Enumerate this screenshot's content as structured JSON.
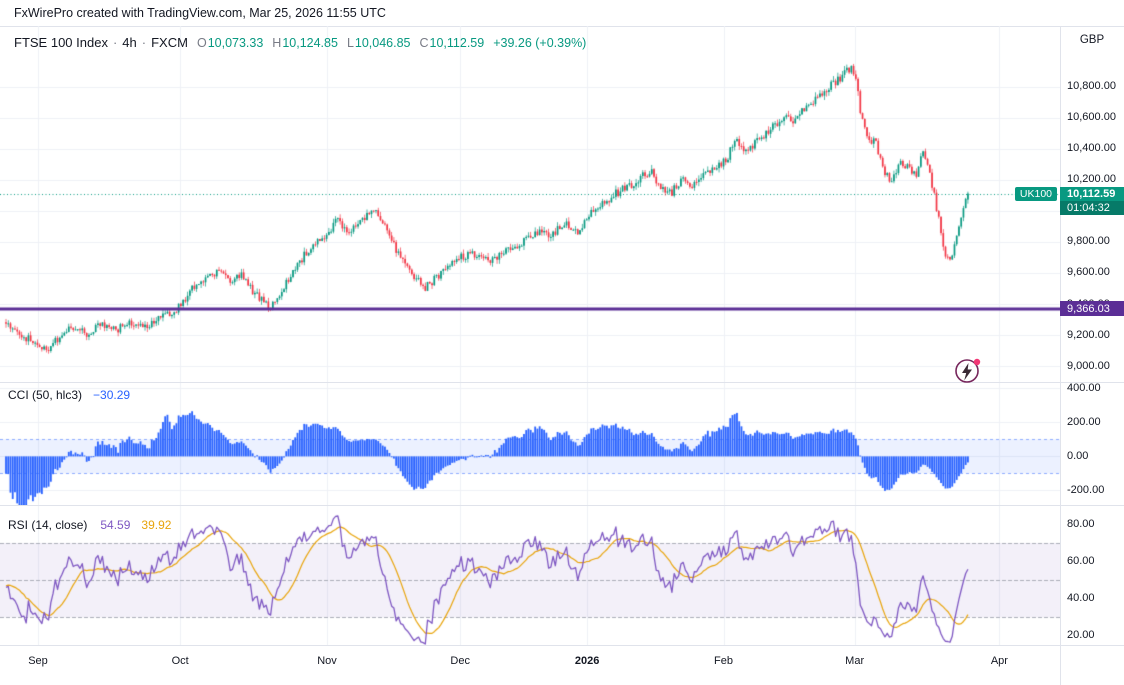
{
  "attribution": {
    "text": "FxWirePro created with TradingView.com, Mar 25, 2026 11:55 UTC"
  },
  "colors": {
    "up": "#089981",
    "down": "#F23645",
    "cci": "#2962FF",
    "rsi": "#7E57C2",
    "rsi_ma": "#E8A40B",
    "level": "#5B2E96",
    "last_price": "#089981",
    "grid": "#EEF1F6",
    "text": "#131722",
    "muted": "#787B86",
    "cci_band_fill": "rgba(41,98,255,0.09)",
    "cci_band_edge": "rgba(41,98,255,0.5)",
    "rsi_band_fill": "rgba(126,87,194,0.09)",
    "rsi_level_line": "#ABAEB8"
  },
  "main_legend": {
    "title": "FTSE 100 Index",
    "sep": "·",
    "interval": "4h",
    "exchange": "FXCM",
    "open_label": "O",
    "open": "10,073.33",
    "high_label": "H",
    "high": "10,124.85",
    "low_label": "L",
    "low": "10,046.85",
    "close_label": "C",
    "close": "10,112.59",
    "change": "+39.26 (+0.39%)"
  },
  "cci_legend": {
    "title": "CCI (50, hlc3)",
    "value": "−30.29"
  },
  "rsi_legend": {
    "title": "RSI (14, close)",
    "value": "54.59",
    "ma_value": "39.92"
  },
  "price_axis": {
    "currency": "GBP",
    "ticks": [
      {
        "v": 10800,
        "label": "10,800.00"
      },
      {
        "v": 10600,
        "label": "10,600.00"
      },
      {
        "v": 10400,
        "label": "10,400.00"
      },
      {
        "v": 10200,
        "label": "10,200.00"
      },
      {
        "v": 10000,
        "label": "10,000.00"
      },
      {
        "v": 9800,
        "label": "9,800.00"
      },
      {
        "v": 9600,
        "label": "9,600.00"
      },
      {
        "v": 9400,
        "label": "9,400.00"
      },
      {
        "v": 9200,
        "label": "9,200.00"
      },
      {
        "v": 9000,
        "label": "9,000.00"
      }
    ],
    "last_badge": {
      "symbol": "UK100",
      "price": "10,112.59",
      "countdown": "01:04:32"
    },
    "level_badge": "9,366.03"
  },
  "cci_axis": [
    {
      "v": 400,
      "label": "400.00"
    },
    {
      "v": 200,
      "label": "200.00"
    },
    {
      "v": 0,
      "label": "0.00"
    },
    {
      "v": -200,
      "label": "-200.00"
    }
  ],
  "rsi_axis": [
    {
      "v": 80,
      "label": "80.00"
    },
    {
      "v": 60,
      "label": "60.00"
    },
    {
      "v": 40,
      "label": "40.00"
    },
    {
      "v": 20,
      "label": "20.00"
    }
  ],
  "time_axis": [
    {
      "label": "Sep",
      "f": 0.0305,
      "bold": false
    },
    {
      "label": "Oct",
      "f": 0.166,
      "bold": false
    },
    {
      "label": "Nov",
      "f": 0.306,
      "bold": false
    },
    {
      "label": "Dec",
      "f": 0.433,
      "bold": false
    },
    {
      "label": "2026",
      "f": 0.554,
      "bold": true
    },
    {
      "label": "Feb",
      "f": 0.684,
      "bold": false
    },
    {
      "label": "Mar",
      "f": 0.809,
      "bold": false
    },
    {
      "label": "Apr",
      "f": 0.947,
      "bold": false
    }
  ],
  "chart_data": [
    {
      "type": "candlestick",
      "pane": "price",
      "symbol": "FTSE 100 Index",
      "interval": "4h",
      "exchange": "FXCM",
      "currency": "GBP",
      "ohlc_current": {
        "open": 10073.33,
        "high": 10124.85,
        "low": 10046.85,
        "close": 10112.59,
        "change": 39.26,
        "change_pct": 0.39
      },
      "last_price": 10112.59,
      "countdown": "01:04:32",
      "support_level": 9366.03,
      "ylim": [
        8897,
        11193
      ],
      "yticks": [
        9000,
        9200,
        9400,
        9600,
        9800,
        10000,
        10200,
        10400,
        10600,
        10800
      ],
      "x_months": [
        "Sep",
        "Oct",
        "Nov",
        "Dec",
        "2026",
        "Feb",
        "Mar",
        "Apr"
      ],
      "x_extent_frac": 0.917,
      "price_path_anchors": [
        [
          -0.15,
          9420
        ],
        [
          -0.08,
          9300
        ],
        [
          0.0,
          9280
        ],
        [
          0.012,
          9210
        ],
        [
          0.03,
          9140
        ],
        [
          0.04,
          9110
        ],
        [
          0.052,
          9190
        ],
        [
          0.065,
          9255
        ],
        [
          0.078,
          9200
        ],
        [
          0.092,
          9275
        ],
        [
          0.105,
          9230
        ],
        [
          0.118,
          9290
        ],
        [
          0.132,
          9255
        ],
        [
          0.148,
          9310
        ],
        [
          0.16,
          9350
        ],
        [
          0.17,
          9430
        ],
        [
          0.18,
          9520
        ],
        [
          0.192,
          9565
        ],
        [
          0.204,
          9610
        ],
        [
          0.214,
          9540
        ],
        [
          0.224,
          9585
        ],
        [
          0.234,
          9490
        ],
        [
          0.244,
          9430
        ],
        [
          0.251,
          9370
        ],
        [
          0.26,
          9460
        ],
        [
          0.272,
          9580
        ],
        [
          0.285,
          9720
        ],
        [
          0.297,
          9810
        ],
        [
          0.307,
          9865
        ],
        [
          0.316,
          9945
        ],
        [
          0.324,
          9860
        ],
        [
          0.334,
          9900
        ],
        [
          0.344,
          9985
        ],
        [
          0.351,
          10005
        ],
        [
          0.36,
          9905
        ],
        [
          0.37,
          9770
        ],
        [
          0.381,
          9640
        ],
        [
          0.391,
          9555
        ],
        [
          0.4,
          9505
        ],
        [
          0.411,
          9575
        ],
        [
          0.421,
          9650
        ],
        [
          0.433,
          9700
        ],
        [
          0.448,
          9725
        ],
        [
          0.463,
          9680
        ],
        [
          0.478,
          9745
        ],
        [
          0.494,
          9805
        ],
        [
          0.509,
          9880
        ],
        [
          0.52,
          9845
        ],
        [
          0.534,
          9925
        ],
        [
          0.545,
          9875
        ],
        [
          0.557,
          9985
        ],
        [
          0.57,
          10055
        ],
        [
          0.584,
          10125
        ],
        [
          0.599,
          10185
        ],
        [
          0.614,
          10260
        ],
        [
          0.624,
          10150
        ],
        [
          0.634,
          10115
        ],
        [
          0.644,
          10205
        ],
        [
          0.654,
          10150
        ],
        [
          0.665,
          10225
        ],
        [
          0.676,
          10285
        ],
        [
          0.687,
          10330
        ],
        [
          0.695,
          10455
        ],
        [
          0.703,
          10375
        ],
        [
          0.713,
          10425
        ],
        [
          0.723,
          10485
        ],
        [
          0.733,
          10560
        ],
        [
          0.742,
          10620
        ],
        [
          0.752,
          10580
        ],
        [
          0.762,
          10680
        ],
        [
          0.772,
          10725
        ],
        [
          0.783,
          10785
        ],
        [
          0.794,
          10855
        ],
        [
          0.804,
          10925
        ],
        [
          0.809,
          10880
        ],
        [
          0.8155,
          10610
        ],
        [
          0.822,
          10480
        ],
        [
          0.83,
          10425
        ],
        [
          0.838,
          10255
        ],
        [
          0.845,
          10185
        ],
        [
          0.852,
          10320
        ],
        [
          0.86,
          10285
        ],
        [
          0.868,
          10225
        ],
        [
          0.8745,
          10385
        ],
        [
          0.882,
          10205
        ],
        [
          0.889,
          9955
        ],
        [
          0.8955,
          9725
        ],
        [
          0.902,
          9690
        ],
        [
          0.908,
          9880
        ],
        [
          0.913,
          10020
        ],
        [
          0.917,
          10112.59
        ]
      ]
    },
    {
      "type": "bar",
      "pane": "indicator",
      "title": "CCI (50, hlc3)",
      "period": 50,
      "source": "hlc3",
      "current": -30.29,
      "ylim": [
        -285,
        430
      ],
      "yticks": [
        400,
        200,
        0,
        -200
      ],
      "band": [
        -100,
        100
      ]
    },
    {
      "type": "line",
      "pane": "indicator",
      "title": "RSI (14, close)",
      "period": 14,
      "source": "close",
      "series": [
        {
          "name": "RSI",
          "current": 54.59
        },
        {
          "name": "RSI-based MA",
          "current": 39.92
        }
      ],
      "ylim": [
        15,
        90
      ],
      "yticks": [
        80,
        60,
        40,
        20
      ],
      "band": [
        30,
        70
      ],
      "levels": [
        70,
        50,
        30
      ]
    }
  ]
}
